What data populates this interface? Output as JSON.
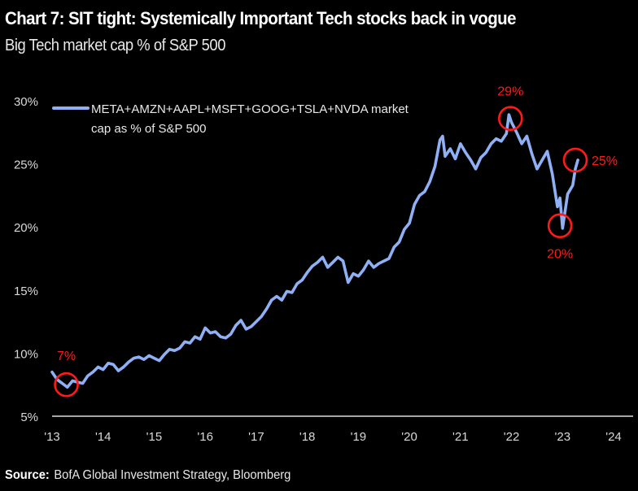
{
  "header": {
    "title": "Chart 7: SIT tight: Systemically Important Tech stocks back in vogue",
    "subtitle": "Big Tech market cap % of S&P 500"
  },
  "footer": {
    "source_label": "Source:",
    "source_text": "BofA Global Investment Strategy, Bloomberg"
  },
  "colors": {
    "series": "#8fb0f5",
    "annotation": "#ff1a1a",
    "axis": "#a6a6a6",
    "background": "#000000"
  },
  "chart_data": {
    "type": "line",
    "title": "Chart 7: SIT tight: Systemically Important Tech stocks back in vogue",
    "subtitle": "Big Tech market cap % of S&P 500",
    "xlabel": "",
    "ylabel": "",
    "xlim": [
      2013,
      2024.15
    ],
    "ylim": [
      5,
      30
    ],
    "grid": false,
    "legend_position": "top-left",
    "x_ticks": [
      2013,
      2014,
      2015,
      2016,
      2017,
      2018,
      2019,
      2020,
      2021,
      2022,
      2023,
      2024
    ],
    "x_tick_labels": [
      "'13",
      "'14",
      "'15",
      "'16",
      "'17",
      "'18",
      "'19",
      "'20",
      "'21",
      "'22",
      "'23",
      "'24"
    ],
    "y_ticks": [
      30,
      25,
      20,
      15,
      10,
      5
    ],
    "y_tick_labels": [
      "30%",
      "25%",
      "20%",
      "15%",
      "10%",
      "5%"
    ],
    "series": [
      {
        "name": "META+AMZN+AAPL+MSFT+GOOG+TSLA+NVDA market cap as % of S&P 500",
        "x": [
          2013.0,
          2013.1,
          2013.2,
          2013.3,
          2013.4,
          2013.5,
          2013.6,
          2013.7,
          2013.8,
          2013.9,
          2014.0,
          2014.1,
          2014.2,
          2014.3,
          2014.4,
          2014.5,
          2014.6,
          2014.7,
          2014.8,
          2014.9,
          2015.0,
          2015.1,
          2015.2,
          2015.3,
          2015.4,
          2015.5,
          2015.6,
          2015.7,
          2015.8,
          2015.9,
          2016.0,
          2016.1,
          2016.2,
          2016.3,
          2016.4,
          2016.5,
          2016.6,
          2016.7,
          2016.8,
          2016.9,
          2017.0,
          2017.1,
          2017.2,
          2017.3,
          2017.4,
          2017.5,
          2017.6,
          2017.7,
          2017.8,
          2017.9,
          2018.0,
          2018.1,
          2018.2,
          2018.3,
          2018.4,
          2018.5,
          2018.6,
          2018.7,
          2018.8,
          2018.9,
          2019.0,
          2019.1,
          2019.2,
          2019.3,
          2019.4,
          2019.5,
          2019.6,
          2019.7,
          2019.8,
          2019.9,
          2020.0,
          2020.1,
          2020.2,
          2020.3,
          2020.4,
          2020.5,
          2020.6,
          2020.65,
          2020.7,
          2020.8,
          2020.9,
          2021.0,
          2021.1,
          2021.2,
          2021.3,
          2021.4,
          2021.5,
          2021.6,
          2021.7,
          2021.8,
          2021.9,
          2021.95,
          2022.0,
          2022.1,
          2022.2,
          2022.3,
          2022.4,
          2022.5,
          2022.6,
          2022.7,
          2022.8,
          2022.9,
          2022.95,
          2023.0,
          2023.1,
          2023.2,
          2023.25,
          2023.3
        ],
        "y": [
          8.5,
          7.9,
          7.6,
          7.3,
          7.8,
          7.7,
          7.6,
          8.2,
          8.5,
          8.9,
          8.7,
          9.2,
          9.1,
          8.6,
          8.9,
          9.3,
          9.6,
          9.7,
          9.5,
          9.8,
          9.6,
          9.4,
          9.9,
          10.3,
          10.2,
          10.4,
          10.9,
          10.8,
          11.3,
          11.1,
          12.0,
          11.6,
          11.7,
          11.3,
          11.2,
          11.5,
          12.2,
          12.6,
          11.9,
          12.1,
          12.5,
          12.9,
          13.5,
          14.2,
          14.5,
          14.2,
          14.9,
          14.8,
          15.5,
          15.8,
          16.4,
          16.9,
          17.2,
          17.6,
          16.8,
          17.2,
          17.6,
          17.3,
          15.6,
          16.3,
          16.1,
          16.6,
          17.3,
          16.8,
          17.1,
          17.3,
          17.5,
          18.4,
          18.8,
          19.8,
          20.3,
          21.8,
          22.5,
          22.8,
          23.6,
          24.8,
          26.9,
          27.2,
          25.6,
          26.2,
          25.4,
          26.6,
          25.9,
          25.3,
          24.6,
          25.5,
          25.9,
          26.6,
          27.0,
          26.8,
          27.4,
          28.9,
          28.3,
          27.5,
          26.6,
          27.2,
          25.8,
          24.6,
          25.3,
          26.0,
          24.2,
          21.6,
          22.3,
          19.9,
          22.6,
          23.3,
          24.6,
          25.3
        ]
      }
    ],
    "annotations": [
      {
        "label": "7%",
        "x": 2013.28,
        "y": 7.5
      },
      {
        "label": "29%",
        "x": 2021.98,
        "y": 28.6
      },
      {
        "label": "20%",
        "x": 2022.95,
        "y": 20.1
      },
      {
        "label": "25%",
        "x": 2023.25,
        "y": 25.3
      }
    ]
  }
}
